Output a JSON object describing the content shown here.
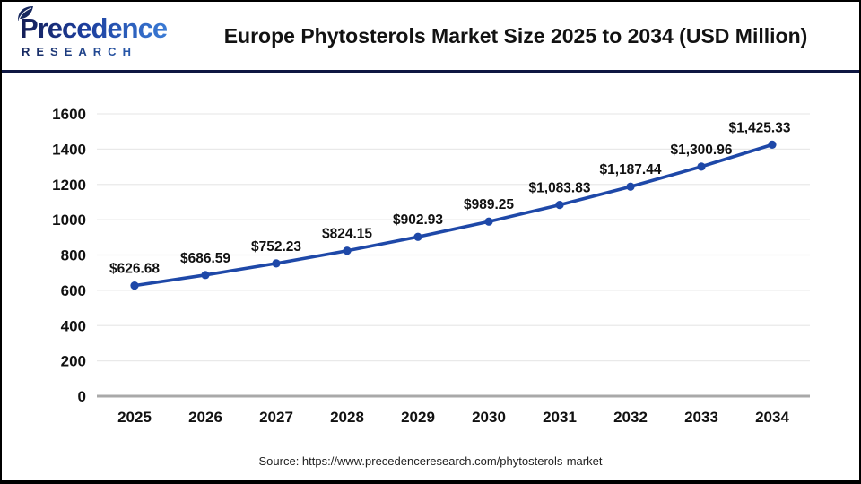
{
  "header": {
    "title": "Europe Phytosterols Market Size 2025 to 2034 (USD Million)",
    "logo": {
      "name": "Precedence",
      "subname": "RESEARCH",
      "leaf_icon": "leaf-icon"
    }
  },
  "chart_data": {
    "type": "line",
    "title": "Europe Phytosterols Market Size 2025 to 2034 (USD Million)",
    "categories": [
      "2025",
      "2026",
      "2027",
      "2028",
      "2029",
      "2030",
      "2031",
      "2032",
      "2033",
      "2034"
    ],
    "series": [
      {
        "name": "Europe Phytosterols Market Size (USD Million)",
        "values": [
          626.68,
          686.59,
          752.23,
          824.15,
          902.93,
          989.25,
          1083.83,
          1187.44,
          1300.96,
          1425.33
        ]
      }
    ],
    "data_labels": [
      "$626.68",
      "$686.59",
      "$752.23",
      "$824.15",
      "$902.93",
      "$989.25",
      "$1,083.83",
      "$1,187.44",
      "$1,300.96",
      "$1,425.33"
    ],
    "xlabel": "",
    "ylabel": "",
    "ylim": [
      0,
      1600
    ],
    "ytick_step": 200,
    "ytick_labels": [
      "0",
      "200",
      "400",
      "600",
      "800",
      "1000",
      "1200",
      "1400",
      "1600"
    ],
    "grid": true,
    "legend_position": "none",
    "line_color": "#1e48a8",
    "marker_color": "#1e48a8",
    "grid_color": "#e9e9e9",
    "axis_line_color": "#a9a9a9",
    "label_color": "#111111"
  },
  "footer": {
    "source": "Source: https://www.precedenceresearch.com/phytosterols-market"
  },
  "colors": {
    "divider_navy": "#0e1742",
    "frame_border": "#000000",
    "background": "#ffffff"
  }
}
